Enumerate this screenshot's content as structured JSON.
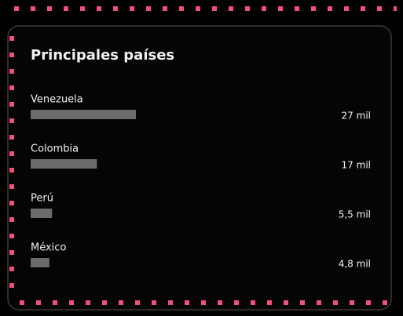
{
  "chart_data": {
    "type": "bar",
    "orientation": "horizontal",
    "title": "Principales países",
    "categories": [
      "Venezuela",
      "Colombia",
      "Perú",
      "México"
    ],
    "values": [
      27,
      17,
      5.5,
      4.8
    ],
    "value_labels": [
      "27 mil",
      "17 mil",
      "5,5 mil",
      "4,8 mil"
    ],
    "color": "#6b6b6b"
  }
}
